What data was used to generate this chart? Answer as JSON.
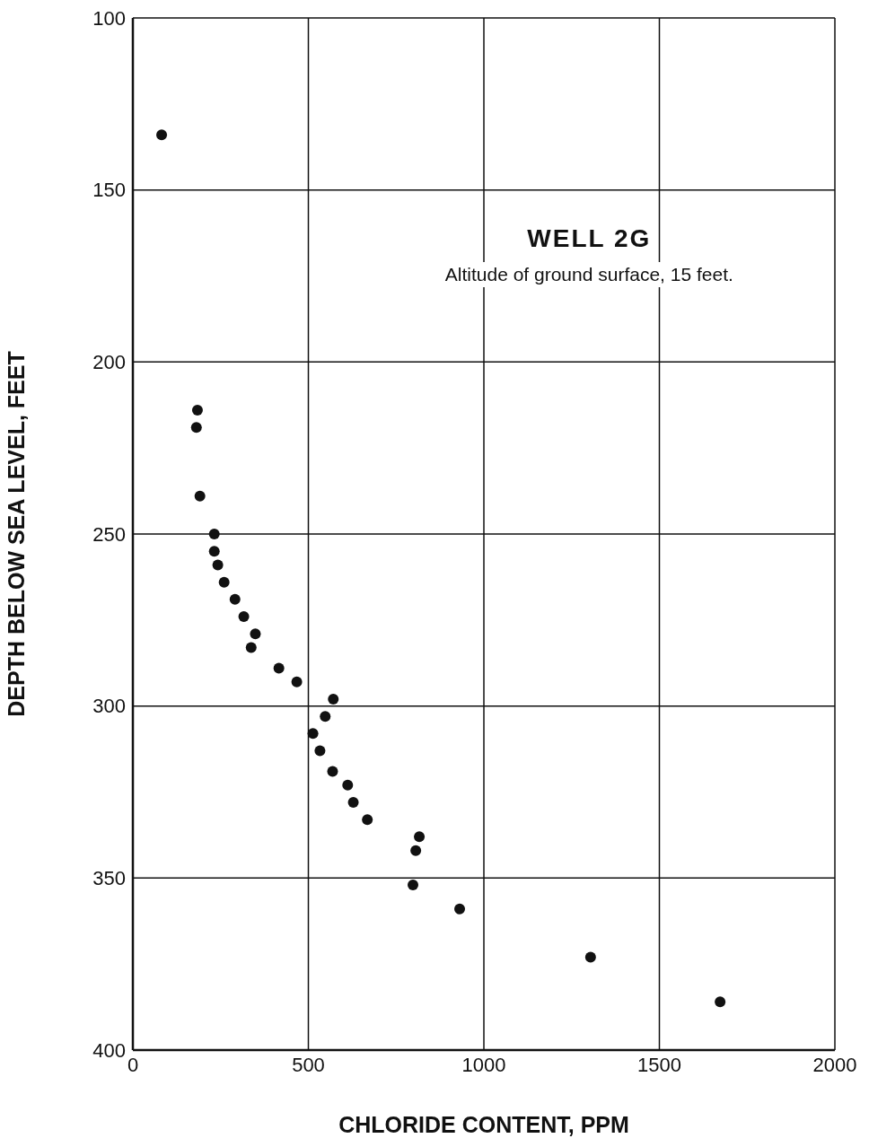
{
  "chart_data": {
    "type": "scatter",
    "title": "WELL 2G",
    "subtitle": "Altitude of ground surface, 15 feet.",
    "xlabel": "CHLORIDE CONTENT, PPM",
    "ylabel": "DEPTH BELOW SEA LEVEL, FEET",
    "xlim": [
      0,
      2000
    ],
    "xticks": [
      0,
      500,
      1000,
      1500,
      2000
    ],
    "ylim": [
      400,
      100
    ],
    "yticks": [
      100,
      150,
      200,
      250,
      300,
      350,
      400
    ],
    "grid": true,
    "marker": "circle",
    "series": [
      {
        "color": "#111111",
        "x": [
          82,
          184,
          181,
          191,
          232,
          232,
          242,
          260,
          291,
          316,
          349,
          337,
          416,
          467,
          571,
          548,
          513,
          533,
          569,
          612,
          628,
          668,
          816,
          806,
          798,
          931,
          1304,
          1673
        ],
        "values": [
          134,
          214,
          219,
          239,
          250,
          255,
          259,
          264,
          269,
          274,
          279,
          283,
          289,
          293,
          298,
          303,
          308,
          313,
          319,
          323,
          328,
          333,
          338,
          342,
          352,
          359,
          373,
          386
        ]
      }
    ]
  }
}
